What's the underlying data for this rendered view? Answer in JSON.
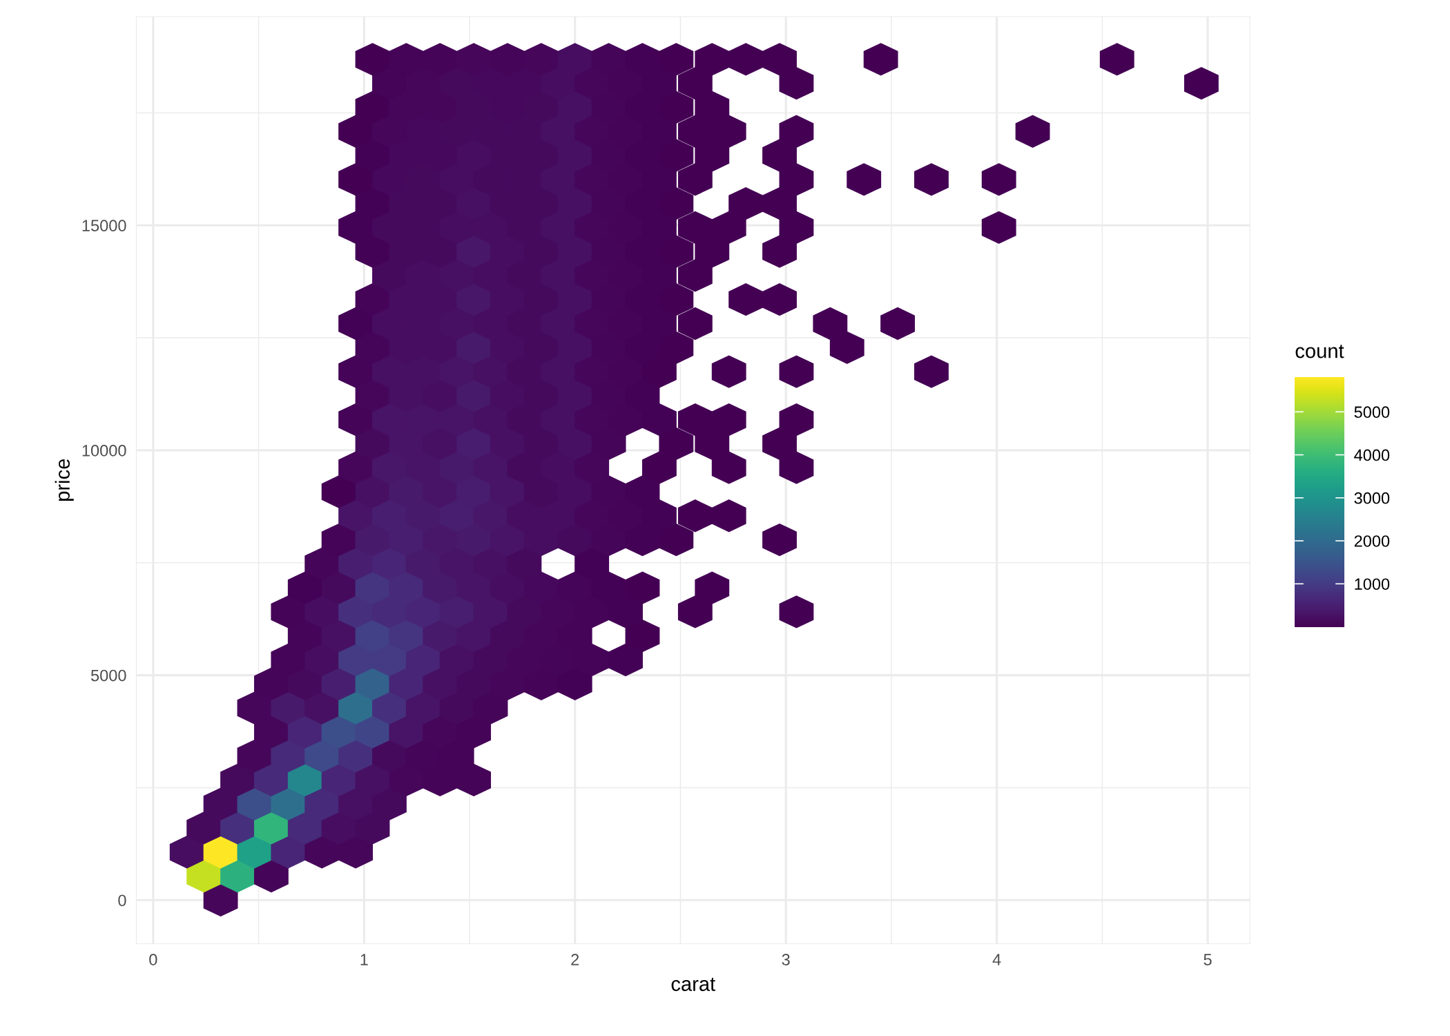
{
  "chart_data": {
    "type": "scatter",
    "xlabel": "carat",
    "ylabel": "price",
    "clabel": "count",
    "xlim": [
      -0.08,
      5.2
    ],
    "ylim": [
      -970,
      19640
    ],
    "xticks": [
      0,
      1,
      2,
      3,
      4,
      5
    ],
    "yticks": [
      0,
      5000,
      10000,
      15000
    ],
    "clim": [
      1,
      5808
    ],
    "cticks": [
      1000,
      2000,
      3000,
      4000,
      5000
    ],
    "grid": true,
    "legend": false,
    "series": [
      {
        "x": [
          0.32,
          0.24,
          0.4,
          0.56,
          0.16,
          0.32,
          0.48,
          0.64,
          0.8,
          0.96,
          0.24,
          0.4,
          0.56,
          0.72,
          0.88,
          1.04,
          0.32,
          0.48,
          0.64,
          0.8,
          0.96,
          1.12,
          0.4,
          0.56,
          0.72,
          0.88,
          1.04,
          1.2,
          1.36,
          1.52,
          0.48,
          0.64,
          0.8,
          0.96,
          1.12,
          1.28,
          1.44,
          0.56,
          0.72,
          0.88,
          1.04,
          1.2,
          1.36,
          1.52,
          0.48,
          0.64,
          0.8,
          0.96,
          1.12,
          1.28,
          1.44,
          1.6,
          0.56,
          0.72,
          0.88,
          1.04,
          1.2,
          1.36,
          1.52,
          1.68,
          1.84,
          2.0,
          0.64,
          0.8,
          0.96,
          1.12,
          1.28,
          1.44,
          1.6,
          1.76,
          1.92,
          2.08,
          2.24,
          0.72,
          0.88,
          1.04,
          1.2,
          1.36,
          1.52,
          1.68,
          1.84,
          2.0,
          2.32,
          0.64,
          0.8,
          0.96,
          1.12,
          1.28,
          1.44,
          1.6,
          1.76,
          1.92,
          2.08,
          2.24,
          2.57,
          3.05,
          0.72,
          0.88,
          1.04,
          1.2,
          1.36,
          1.52,
          1.68,
          1.84,
          2.0,
          2.16,
          2.32,
          2.65,
          0.8,
          0.96,
          1.12,
          1.28,
          1.44,
          1.6,
          1.76,
          2.08,
          0.88,
          1.04,
          1.2,
          1.36,
          1.52,
          1.68,
          1.84,
          2.0,
          2.16,
          2.32,
          2.48,
          2.97,
          0.96,
          1.12,
          1.28,
          1.44,
          1.6,
          1.76,
          1.92,
          2.08,
          2.24,
          2.4,
          2.57,
          2.73,
          0.88,
          1.04,
          1.2,
          1.36,
          1.52,
          1.68,
          1.84,
          2.0,
          2.16,
          2.32,
          0.96,
          1.12,
          1.28,
          1.44,
          1.6,
          1.76,
          1.92,
          2.08,
          2.4,
          2.73,
          3.05,
          1.04,
          1.2,
          1.36,
          1.52,
          1.68,
          1.84,
          2.0,
          2.16,
          2.48,
          2.65,
          2.97,
          0.96,
          1.12,
          1.28,
          1.44,
          1.6,
          1.76,
          1.92,
          2.08,
          2.24,
          2.4,
          2.57,
          2.73,
          3.05,
          1.04,
          1.2,
          1.36,
          1.52,
          1.68,
          1.84,
          2.0,
          2.16,
          2.32,
          0.96,
          1.12,
          1.28,
          1.44,
          1.6,
          1.76,
          1.92,
          2.08,
          2.24,
          2.4,
          2.73,
          3.05,
          3.69,
          1.04,
          1.2,
          1.36,
          1.52,
          1.68,
          1.84,
          2.0,
          2.16,
          2.32,
          2.48,
          3.29,
          0.96,
          1.12,
          1.28,
          1.44,
          1.6,
          1.76,
          1.92,
          2.08,
          2.24,
          2.4,
          2.57,
          3.21,
          3.53,
          1.04,
          1.2,
          1.36,
          1.52,
          1.68,
          1.84,
          2.0,
          2.16,
          2.32,
          2.48,
          2.81,
          2.97,
          1.12,
          1.28,
          1.44,
          1.6,
          1.76,
          1.92,
          2.08,
          2.24,
          2.4,
          2.57,
          1.04,
          1.2,
          1.36,
          1.52,
          1.68,
          1.84,
          2.0,
          2.16,
          2.32,
          2.48,
          2.65,
          2.97,
          0.96,
          1.12,
          1.28,
          1.44,
          1.6,
          1.76,
          1.92,
          2.08,
          2.24,
          2.4,
          2.57,
          2.73,
          3.05,
          4.01,
          1.04,
          1.2,
          1.36,
          1.52,
          1.68,
          1.84,
          2.0,
          2.16,
          2.32,
          2.48,
          2.81,
          2.97,
          0.96,
          1.12,
          1.28,
          1.44,
          1.6,
          1.76,
          1.92,
          2.08,
          2.24,
          2.4,
          2.57,
          3.05,
          3.37,
          3.69,
          4.01,
          1.04,
          1.2,
          1.36,
          1.52,
          1.68,
          1.84,
          2.0,
          2.16,
          2.32,
          2.48,
          2.65,
          2.97,
          0.96,
          1.12,
          1.28,
          1.44,
          1.6,
          1.76,
          1.92,
          2.08,
          2.24,
          2.4,
          2.57,
          2.73,
          3.05,
          4.17,
          1.04,
          1.2,
          1.36,
          1.52,
          1.68,
          1.84,
          2.0,
          2.16,
          2.32,
          2.48,
          2.65,
          1.12,
          1.28,
          1.44,
          1.6,
          1.76,
          1.92,
          2.08,
          2.24,
          2.4,
          2.57,
          3.05,
          4.97,
          1.04,
          1.2,
          1.36,
          1.52,
          1.68,
          1.84,
          2.0,
          2.16,
          2.32,
          2.48,
          2.65,
          2.81,
          2.97,
          3.45,
          4.57
        ],
        "values": [
          0,
          534,
          534,
          534,
          1068,
          1068,
          1068,
          1068,
          1068,
          1068,
          1602,
          1602,
          1602,
          1602,
          1602,
          1602,
          2136,
          2136,
          2136,
          2136,
          2136,
          2136,
          2670,
          2670,
          2670,
          2670,
          2670,
          2670,
          2670,
          2670,
          3204,
          3204,
          3204,
          3204,
          3204,
          3204,
          3204,
          3738,
          3738,
          3738,
          3738,
          3738,
          3738,
          3738,
          4272,
          4272,
          4272,
          4272,
          4272,
          4272,
          4272,
          4272,
          4806,
          4806,
          4806,
          4806,
          4806,
          4806,
          4806,
          4806,
          4806,
          4806,
          5340,
          5340,
          5340,
          5340,
          5340,
          5340,
          5340,
          5340,
          5340,
          5340,
          5340,
          5874,
          5874,
          5874,
          5874,
          5874,
          5874,
          5874,
          5874,
          5874,
          5874,
          6408,
          6408,
          6408,
          6408,
          6408,
          6408,
          6408,
          6408,
          6408,
          6408,
          6408,
          6408,
          6408,
          6942,
          6942,
          6942,
          6942,
          6942,
          6942,
          6942,
          6942,
          6942,
          6942,
          6942,
          6942,
          7476,
          7476,
          7476,
          7476,
          7476,
          7476,
          7476,
          7476,
          8010,
          8010,
          8010,
          8010,
          8010,
          8010,
          8010,
          8010,
          8010,
          8010,
          8010,
          8010,
          8544,
          8544,
          8544,
          8544,
          8544,
          8544,
          8544,
          8544,
          8544,
          8544,
          8544,
          8544,
          9078,
          9078,
          9078,
          9078,
          9078,
          9078,
          9078,
          9078,
          9078,
          9078,
          9612,
          9612,
          9612,
          9612,
          9612,
          9612,
          9612,
          9612,
          9612,
          9612,
          9612,
          10146,
          10146,
          10146,
          10146,
          10146,
          10146,
          10146,
          10146,
          10146,
          10146,
          10146,
          10680,
          10680,
          10680,
          10680,
          10680,
          10680,
          10680,
          10680,
          10680,
          10680,
          10680,
          10680,
          10680,
          11214,
          11214,
          11214,
          11214,
          11214,
          11214,
          11214,
          11214,
          11214,
          11748,
          11748,
          11748,
          11748,
          11748,
          11748,
          11748,
          11748,
          11748,
          11748,
          11748,
          11748,
          11748,
          12282,
          12282,
          12282,
          12282,
          12282,
          12282,
          12282,
          12282,
          12282,
          12282,
          12282,
          12816,
          12816,
          12816,
          12816,
          12816,
          12816,
          12816,
          12816,
          12816,
          12816,
          12816,
          12816,
          12816,
          13350,
          13350,
          13350,
          13350,
          13350,
          13350,
          13350,
          13350,
          13350,
          13350,
          13350,
          13350,
          13884,
          13884,
          13884,
          13884,
          13884,
          13884,
          13884,
          13884,
          13884,
          13884,
          14418,
          14418,
          14418,
          14418,
          14418,
          14418,
          14418,
          14418,
          14418,
          14418,
          14418,
          14418,
          14952,
          14952,
          14952,
          14952,
          14952,
          14952,
          14952,
          14952,
          14952,
          14952,
          14952,
          14952,
          14952,
          14952,
          15486,
          15486,
          15486,
          15486,
          15486,
          15486,
          15486,
          15486,
          15486,
          15486,
          15486,
          15486,
          16020,
          16020,
          16020,
          16020,
          16020,
          16020,
          16020,
          16020,
          16020,
          16020,
          16020,
          16020,
          16020,
          16020,
          16020,
          16554,
          16554,
          16554,
          16554,
          16554,
          16554,
          16554,
          16554,
          16554,
          16554,
          16554,
          16554,
          17088,
          17088,
          17088,
          17088,
          17088,
          17088,
          17088,
          17088,
          17088,
          17088,
          17088,
          17088,
          17088,
          17088,
          17622,
          17622,
          17622,
          17622,
          17622,
          17622,
          17622,
          17622,
          17622,
          17622,
          17622,
          18156,
          18156,
          18156,
          18156,
          18156,
          18156,
          18156,
          18156,
          18156,
          18156,
          18156,
          18156,
          18690,
          18690,
          18690,
          18690,
          18690,
          18690,
          18690,
          18690,
          18690,
          18690,
          18690,
          18690,
          18690,
          18690,
          18690
        ],
        "cvalues": [
          100,
          5300,
          3700,
          80,
          200,
          5800,
          3300,
          600,
          100,
          100,
          150,
          800,
          3800,
          700,
          200,
          150,
          150,
          1400,
          2100,
          700,
          250,
          150,
          150,
          700,
          2700,
          600,
          250,
          100,
          50,
          50,
          100,
          700,
          1300,
          800,
          150,
          80,
          50,
          100,
          600,
          1400,
          1200,
          300,
          100,
          60,
          100,
          400,
          250,
          2100,
          800,
          300,
          150,
          80,
          80,
          150,
          500,
          1800,
          600,
          250,
          150,
          100,
          60,
          40,
          80,
          200,
          1000,
          1000,
          600,
          250,
          150,
          100,
          80,
          50,
          30,
          80,
          250,
          1100,
          900,
          400,
          300,
          150,
          100,
          60,
          20,
          60,
          200,
          800,
          700,
          600,
          500,
          300,
          150,
          100,
          60,
          30,
          2,
          1,
          40,
          150,
          900,
          700,
          400,
          300,
          200,
          120,
          80,
          40,
          20,
          1,
          80,
          500,
          600,
          400,
          300,
          250,
          150,
          30,
          50,
          400,
          500,
          350,
          400,
          300,
          200,
          150,
          80,
          40,
          15,
          1,
          300,
          500,
          400,
          500,
          350,
          200,
          200,
          100,
          60,
          30,
          10,
          5,
          20,
          250,
          400,
          300,
          450,
          300,
          150,
          200,
          80,
          30,
          100,
          350,
          300,
          400,
          300,
          150,
          200,
          100,
          20,
          5,
          1,
          150,
          300,
          250,
          450,
          250,
          150,
          250,
          80,
          20,
          10,
          1,
          60,
          300,
          300,
          300,
          250,
          150,
          250,
          100,
          60,
          30,
          10,
          5,
          2,
          100,
          250,
          200,
          400,
          200,
          150,
          250,
          80,
          30,
          50,
          250,
          250,
          300,
          250,
          150,
          250,
          100,
          50,
          20,
          3,
          2,
          1,
          80,
          200,
          200,
          400,
          200,
          150,
          250,
          80,
          40,
          15,
          1,
          40,
          200,
          200,
          250,
          200,
          150,
          250,
          100,
          60,
          30,
          10,
          1,
          1,
          60,
          200,
          200,
          350,
          200,
          150,
          250,
          80,
          40,
          15,
          2,
          2,
          150,
          200,
          250,
          200,
          150,
          250,
          100,
          60,
          30,
          10,
          40,
          150,
          150,
          350,
          200,
          150,
          250,
          80,
          40,
          20,
          5,
          2,
          30,
          150,
          150,
          200,
          200,
          150,
          250,
          100,
          60,
          30,
          10,
          5,
          2,
          1,
          30,
          150,
          150,
          250,
          150,
          150,
          250,
          80,
          40,
          15,
          3,
          2,
          20,
          120,
          150,
          200,
          150,
          150,
          250,
          100,
          50,
          30,
          10,
          2,
          1,
          1,
          1,
          30,
          120,
          120,
          200,
          150,
          150,
          250,
          80,
          40,
          20,
          5,
          2,
          10,
          100,
          120,
          150,
          150,
          150,
          250,
          100,
          50,
          30,
          10,
          3,
          2,
          1,
          20,
          100,
          100,
          150,
          120,
          150,
          250,
          80,
          40,
          20,
          5,
          60,
          100,
          150,
          120,
          120,
          200,
          100,
          50,
          30,
          10,
          2,
          1,
          20,
          60,
          60,
          100,
          80,
          100,
          200,
          80,
          40,
          20,
          10,
          5,
          3,
          1,
          1
        ]
      }
    ]
  }
}
